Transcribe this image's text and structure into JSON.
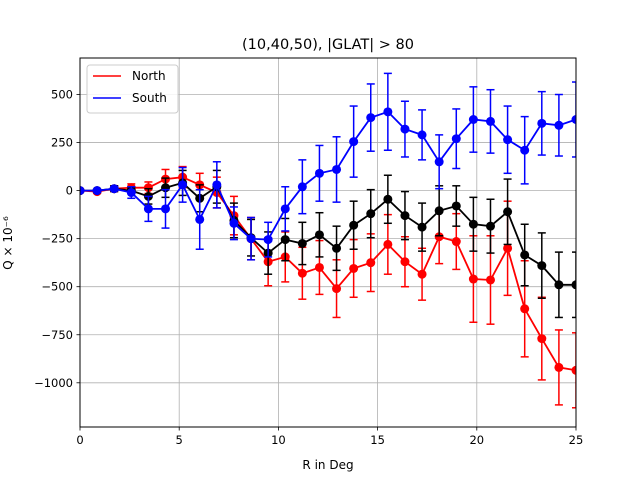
{
  "chart_data": {
    "type": "line",
    "title": "(10,40,50), |GLAT| > 80",
    "xlabel": "R in Deg",
    "ylabel": "Q × 10⁻⁶",
    "xlim": [
      0,
      25
    ],
    "ylim": [
      -1230,
      690
    ],
    "xticks": [
      0,
      5,
      10,
      15,
      20,
      25
    ],
    "yticks": [
      -1000,
      -750,
      -500,
      -250,
      0,
      250,
      500
    ],
    "grid": true,
    "legend_position": "top-left",
    "x": [
      0,
      0.862,
      1.724,
      2.586,
      3.448,
      4.31,
      5.172,
      6.034,
      6.897,
      7.759,
      8.621,
      9.483,
      10.345,
      11.207,
      12.069,
      12.931,
      13.793,
      14.655,
      15.517,
      16.379,
      17.241,
      18.103,
      18.966,
      19.828,
      20.69,
      21.552,
      22.414,
      23.276,
      24.138,
      25
    ],
    "series": [
      {
        "name": "North",
        "color": "#ff0000",
        "values": [
          0,
          -5,
          10,
          15,
          15,
          60,
          70,
          30,
          -10,
          -130,
          -250,
          -370,
          -345,
          -430,
          -400,
          -510,
          -405,
          -375,
          -280,
          -370,
          -435,
          -240,
          -265,
          -460,
          -465,
          -300,
          -615,
          -770,
          -920,
          -935
        ],
        "errors": [
          5,
          8,
          15,
          20,
          30,
          50,
          55,
          60,
          80,
          100,
          110,
          125,
          130,
          135,
          140,
          150,
          150,
          150,
          155,
          130,
          135,
          140,
          145,
          225,
          230,
          245,
          250,
          215,
          195,
          195
        ]
      },
      {
        "name": "",
        "color": "#000000",
        "values": [
          0,
          0,
          10,
          0,
          -30,
          15,
          40,
          -40,
          20,
          -155,
          -245,
          -325,
          -255,
          -275,
          -230,
          -300,
          -180,
          -120,
          -45,
          -130,
          -190,
          -105,
          -80,
          -175,
          -185,
          -110,
          -335,
          -390,
          -490,
          -490
        ],
        "errors": [
          5,
          5,
          15,
          15,
          40,
          50,
          65,
          70,
          85,
          90,
          95,
          110,
          110,
          110,
          115,
          115,
          125,
          125,
          125,
          125,
          125,
          130,
          105,
          140,
          140,
          170,
          160,
          170,
          170,
          170
        ]
      },
      {
        "name": "South",
        "color": "#0000ff",
        "values": [
          0,
          0,
          10,
          -10,
          -95,
          -95,
          30,
          -150,
          30,
          -170,
          -250,
          -255,
          -95,
          20,
          90,
          110,
          255,
          380,
          410,
          320,
          290,
          150,
          270,
          370,
          360,
          265,
          210,
          350,
          340,
          370
        ],
        "errors": [
          5,
          5,
          10,
          30,
          65,
          100,
          90,
          155,
          120,
          85,
          110,
          90,
          115,
          140,
          145,
          170,
          185,
          175,
          200,
          145,
          130,
          140,
          155,
          170,
          165,
          175,
          175,
          165,
          160,
          195
        ]
      }
    ]
  }
}
